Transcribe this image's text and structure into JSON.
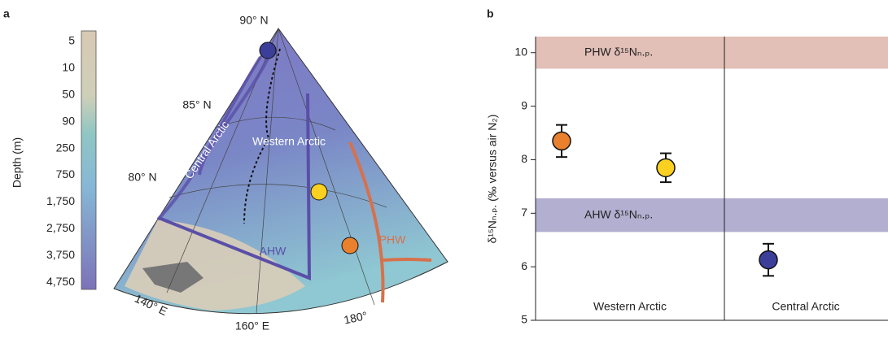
{
  "map": {
    "panel": "a",
    "colorbar": {
      "title": "Depth (m)",
      "labels": [
        "5",
        "10",
        "50",
        "90",
        "250",
        "750",
        "1,750",
        "2,750",
        "3,750",
        "4,750"
      ]
    },
    "labels": {
      "lat90": "90° N",
      "lat85": "85° N",
      "lat80": "80° N",
      "lon140": "140° E",
      "lon160": "160° E",
      "lon180": "180°",
      "central": "Central Arctic",
      "western": "Western Arctic",
      "ahw": "AHW",
      "phw": "PHW"
    }
  },
  "chart_data": {
    "type": "dot",
    "panel": "b",
    "ylabel": "δ¹⁵Nₙ.ₚ. (‰ versus air N₂)",
    "ylim": [
      5,
      10.3
    ],
    "yticks": [
      5,
      6,
      7,
      8,
      9,
      10
    ],
    "bands": [
      {
        "label": "PHW δ¹⁵Nₙ.ₚ.",
        "range": [
          9.7,
          10.3
        ],
        "color": "#e2bfb7"
      },
      {
        "label": "AHW δ¹⁵Nₙ.ₚ.",
        "range": [
          6.65,
          7.28
        ],
        "color": "#b3afd0"
      }
    ],
    "series": [
      {
        "name": "Western Arctic",
        "values": [
          8.35,
          7.85
        ],
        "errors": [
          0.3,
          0.27
        ],
        "colors": [
          "#e9802e",
          "#fbd020"
        ]
      },
      {
        "name": "Central Arctic",
        "values": [
          6.13
        ],
        "errors": [
          0.3
        ],
        "colors": [
          "#3c3f9a"
        ]
      }
    ]
  }
}
